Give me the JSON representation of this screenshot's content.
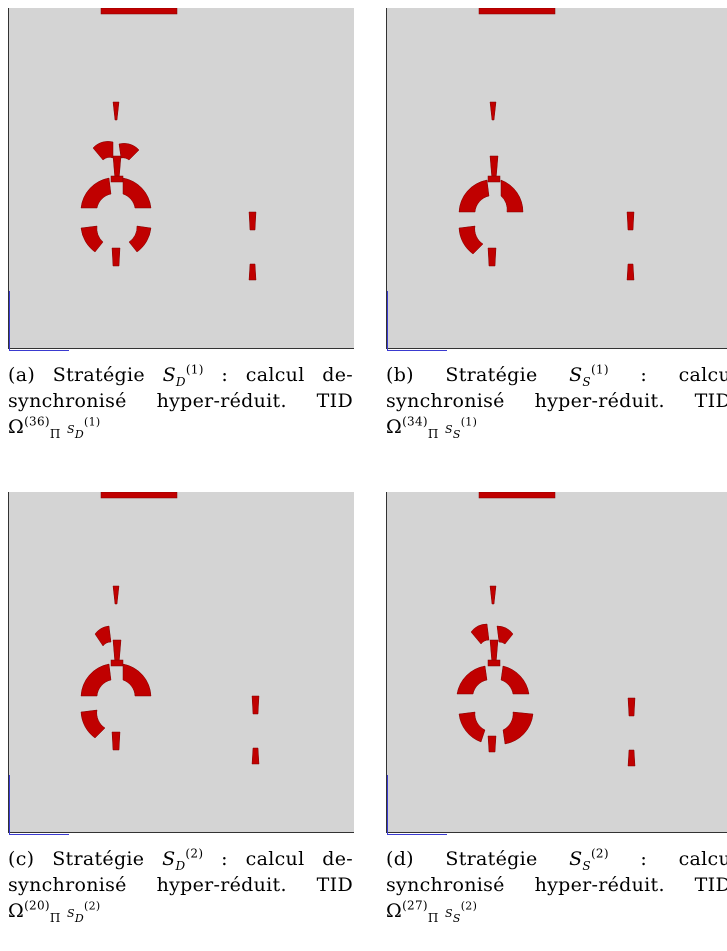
{
  "panels": [
    {
      "id": "a",
      "label": "(a)",
      "strategy_word": "Stratégie",
      "strat_sub": "D",
      "strat_sup": "(1)",
      "text_line1_end": ": calcul de-",
      "text_line2": "synchronisé hyper-réduit. TID",
      "omega_sup": "(36)",
      "omega_sub": "Π",
      "omega_idx_sub": "D",
      "omega_idx_sup": "(1)"
    },
    {
      "id": "b",
      "label": "(b)",
      "strategy_word": "Stratégie",
      "strat_sub": "S",
      "strat_sup": "(1)",
      "text_line1_end": ": calcu",
      "text_line2": "synchronisé hyper-réduit. TID",
      "omega_sup": "(34)",
      "omega_sub": "Π",
      "omega_idx_sub": "S",
      "omega_idx_sup": "(1)"
    },
    {
      "id": "c",
      "label": "(c)",
      "strategy_word": "Stratégie",
      "strat_sub": "D",
      "strat_sup": "(2)",
      "text_line1_end": ": calcul de-",
      "text_line2": "synchronisé hyper-réduit. TID",
      "omega_sup": "(20)",
      "omega_sub": "Π",
      "omega_idx_sub": "D",
      "omega_idx_sup": "(2)"
    },
    {
      "id": "d",
      "label": "(d)",
      "strategy_word": "Stratégie",
      "strat_sub": "S",
      "strat_sup": "(2)",
      "text_line1_end": ": calcu",
      "text_line2": "synchronisé hyper-réduit. TID",
      "omega_sup": "(27)",
      "omega_sub": "Π",
      "omega_idx_sub": "S",
      "omega_idx_sup": "(2)"
    }
  ],
  "colors": {
    "mesh": "#d4d4d4",
    "domain": "#c00000",
    "axis": "#3a3ad0"
  }
}
